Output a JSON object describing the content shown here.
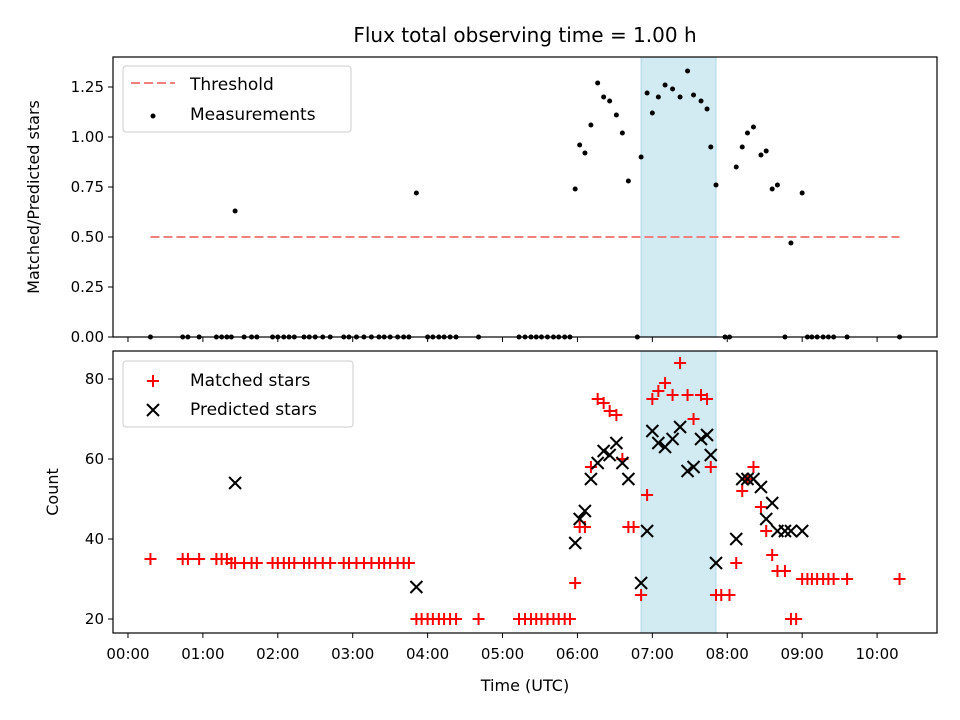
{
  "chart_data": {
    "title": "Flux total observing time = 1.00 h",
    "xlabel": "Time (UTC)",
    "x_unit": "hours UTC",
    "xlim": [
      -0.2,
      10.8
    ],
    "x_ticks": [
      "00:00",
      "01:00",
      "02:00",
      "03:00",
      "04:00",
      "05:00",
      "06:00",
      "07:00",
      "08:00",
      "09:00",
      "10:00"
    ],
    "highlight_span": {
      "x_start": 6.85,
      "x_end": 7.85,
      "color": "#add8e6"
    },
    "panels": [
      {
        "type": "scatter",
        "ylabel": "Matched/Predicted stars",
        "ylim": [
          0,
          1.4
        ],
        "y_ticks": [
          "0.00",
          "0.25",
          "0.50",
          "0.75",
          "1.00",
          "1.25"
        ],
        "legend_position": "top-left",
        "threshold": {
          "name": "Threshold",
          "y": 0.5,
          "x_range": [
            0.3,
            10.3
          ],
          "color": "#f08080"
        },
        "series": [
          {
            "name": "Measurements",
            "color": "#000000",
            "x": [
              0.3,
              0.73,
              0.8,
              0.95,
              1.18,
              1.25,
              1.32,
              1.38,
              1.43,
              1.55,
              1.65,
              1.72,
              1.93,
              2.0,
              2.08,
              2.15,
              2.22,
              2.35,
              2.42,
              2.5,
              2.6,
              2.7,
              2.88,
              2.95,
              3.05,
              3.15,
              3.25,
              3.35,
              3.42,
              3.5,
              3.6,
              3.68,
              3.75,
              3.85,
              4.0,
              4.07,
              4.15,
              4.22,
              4.3,
              4.38,
              4.68,
              5.22,
              5.3,
              5.38,
              5.45,
              5.52,
              5.6,
              5.68,
              5.75,
              5.83,
              5.9,
              5.97,
              6.03,
              6.1,
              6.18,
              6.27,
              6.35,
              6.43,
              6.52,
              6.6,
              6.68,
              6.8,
              6.85,
              6.93,
              7.0,
              7.08,
              7.17,
              7.27,
              7.37,
              7.47,
              7.55,
              7.65,
              7.73,
              7.78,
              7.85,
              7.97,
              8.03,
              8.12,
              8.2,
              8.27,
              8.35,
              8.45,
              8.52,
              8.6,
              8.67,
              8.77,
              8.85,
              9.0,
              9.07,
              9.13,
              9.2,
              9.28,
              9.35,
              9.42,
              9.6,
              10.3
            ],
            "y": [
              0,
              0,
              0,
              0,
              0,
              0,
              0,
              0,
              0.63,
              0,
              0,
              0,
              0,
              0,
              0,
              0,
              0,
              0,
              0,
              0,
              0,
              0,
              0,
              0,
              0,
              0,
              0,
              0,
              0,
              0,
              0,
              0,
              0,
              0.72,
              0,
              0,
              0,
              0,
              0,
              0,
              0,
              0,
              0,
              0,
              0,
              0,
              0,
              0,
              0,
              0,
              0,
              0.74,
              0.96,
              0.92,
              1.06,
              1.27,
              1.2,
              1.18,
              1.11,
              1.02,
              0.78,
              0,
              0.9,
              1.22,
              1.12,
              1.2,
              1.26,
              1.24,
              1.2,
              1.33,
              1.21,
              1.18,
              1.14,
              0.95,
              0.76,
              0,
              0,
              0.85,
              0.95,
              1.02,
              1.05,
              0.91,
              0.93,
              0.74,
              0.76,
              0,
              0.47,
              0.72,
              0,
              0,
              0,
              0,
              0,
              0,
              0,
              0
            ]
          }
        ]
      },
      {
        "type": "scatter",
        "ylabel": "Count",
        "ylim": [
          16.5,
          87
        ],
        "y_ticks": [
          "20",
          "40",
          "60",
          "80"
        ],
        "legend_position": "top-left",
        "series": [
          {
            "name": "Matched stars",
            "marker": "+",
            "color": "#ff0000",
            "x": [
              0.3,
              0.73,
              0.8,
              0.95,
              1.18,
              1.25,
              1.32,
              1.38,
              1.43,
              1.55,
              1.65,
              1.72,
              1.93,
              2.0,
              2.08,
              2.15,
              2.22,
              2.35,
              2.42,
              2.5,
              2.6,
              2.7,
              2.88,
              2.95,
              3.05,
              3.15,
              3.25,
              3.35,
              3.42,
              3.5,
              3.6,
              3.68,
              3.75,
              3.85,
              3.92,
              4.0,
              4.07,
              4.15,
              4.22,
              4.3,
              4.38,
              4.68,
              5.22,
              5.3,
              5.38,
              5.45,
              5.52,
              5.6,
              5.68,
              5.75,
              5.83,
              5.9,
              5.97,
              6.03,
              6.1,
              6.18,
              6.27,
              6.35,
              6.43,
              6.52,
              6.6,
              6.68,
              6.75,
              6.85,
              6.93,
              7.0,
              7.08,
              7.17,
              7.27,
              7.37,
              7.47,
              7.55,
              7.65,
              7.73,
              7.78,
              7.85,
              7.92,
              8.03,
              8.12,
              8.2,
              8.27,
              8.35,
              8.45,
              8.52,
              8.6,
              8.67,
              8.77,
              8.85,
              8.92,
              9.0,
              9.07,
              9.13,
              9.2,
              9.28,
              9.35,
              9.42,
              9.6,
              10.3
            ],
            "y": [
              35,
              35,
              35,
              35,
              35,
              35,
              35,
              34,
              34,
              34,
              34,
              34,
              34,
              34,
              34,
              34,
              34,
              34,
              34,
              34,
              34,
              34,
              34,
              34,
              34,
              34,
              34,
              34,
              34,
              34,
              34,
              34,
              34,
              20,
              20,
              20,
              20,
              20,
              20,
              20,
              20,
              20,
              20,
              20,
              20,
              20,
              20,
              20,
              20,
              20,
              20,
              20,
              29,
              43,
              43,
              58,
              75,
              74,
              72,
              71,
              60,
              43,
              43,
              26,
              51,
              75,
              77,
              79,
              76,
              84,
              76,
              70,
              76,
              75,
              58,
              26,
              26,
              26,
              34,
              52,
              55,
              58,
              48,
              42,
              36,
              32,
              32,
              20,
              20,
              30,
              30,
              30,
              30,
              30,
              30,
              30,
              30,
              30
            ]
          },
          {
            "name": "Predicted stars",
            "marker": "x",
            "color": "#000000",
            "x": [
              1.43,
              3.85,
              5.97,
              6.03,
              6.1,
              6.18,
              6.27,
              6.35,
              6.43,
              6.52,
              6.6,
              6.68,
              6.85,
              6.93,
              7.0,
              7.08,
              7.17,
              7.27,
              7.37,
              7.47,
              7.55,
              7.65,
              7.73,
              7.78,
              7.85,
              8.12,
              8.2,
              8.27,
              8.35,
              8.45,
              8.52,
              8.6,
              8.67,
              8.77,
              8.85,
              9.0
            ],
            "y": [
              54,
              28,
              39,
              45,
              47,
              55,
              59,
              62,
              61,
              64,
              59,
              55,
              29,
              42,
              67,
              64,
              63,
              65,
              68,
              57,
              58,
              65,
              66,
              61,
              34,
              40,
              55,
              55,
              55,
              53,
              45,
              49,
              42,
              42,
              42,
              42
            ]
          }
        ]
      }
    ]
  }
}
